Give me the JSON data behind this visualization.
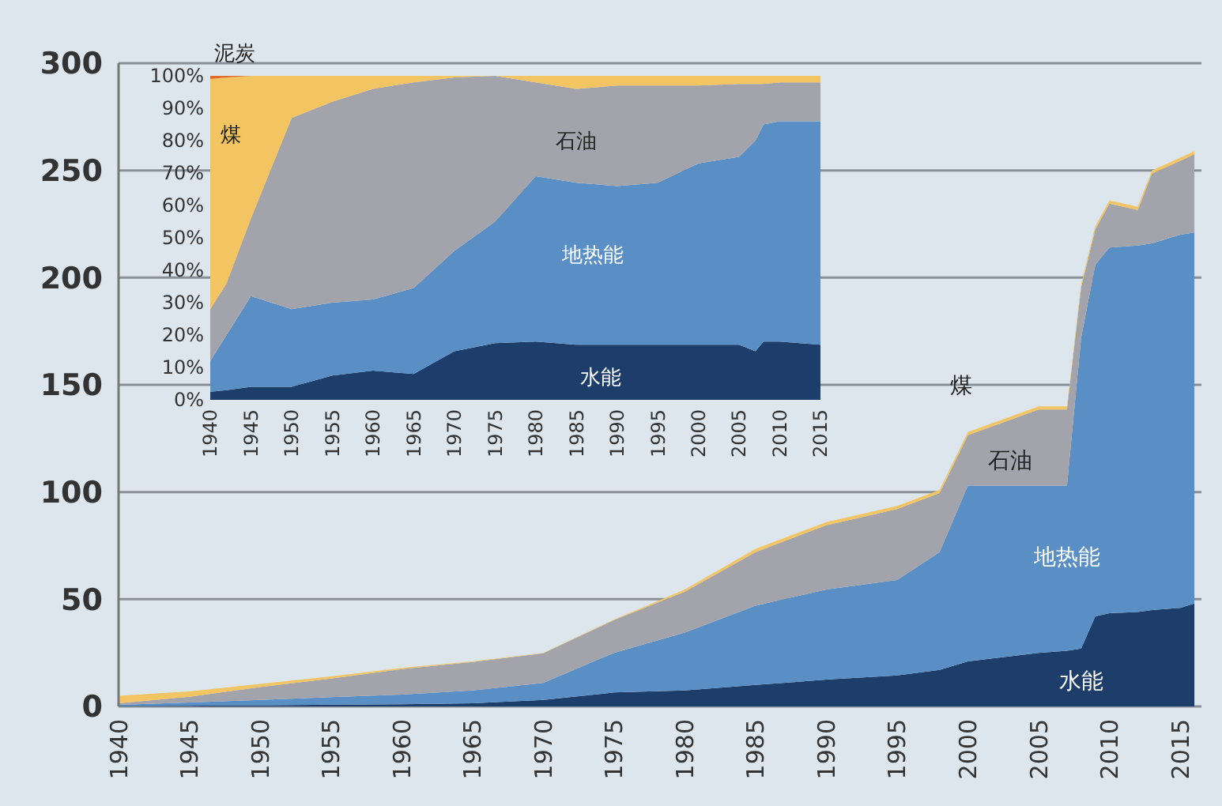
{
  "chart_data": [
    {
      "type": "area",
      "stacked": true,
      "grid": "y",
      "x": [
        1940,
        1945,
        1950,
        1955,
        1960,
        1965,
        1970,
        1975,
        1980,
        1985,
        1990,
        1995,
        1998,
        2000,
        2005,
        2007,
        2008,
        2009,
        2010,
        2012,
        2013,
        2015,
        2016
      ],
      "series": [
        {
          "name": "水能",
          "color": "#1d3d6b",
          "values": [
            0.2,
            0.3,
            0.5,
            0.8,
            1,
            1.5,
            3,
            6.5,
            7.5,
            10,
            12.5,
            14.5,
            17,
            21,
            25,
            26,
            27,
            42,
            43.5,
            44,
            45,
            46,
            48
          ]
        },
        {
          "name": "地热能",
          "color": "#5a8fc6",
          "values": [
            0.5,
            1.5,
            2.5,
            3.5,
            4.5,
            6,
            8,
            18.5,
            27,
            37,
            42,
            44.5,
            55,
            82,
            78,
            77,
            145,
            164,
            170.5,
            171,
            171,
            174,
            173
          ]
        },
        {
          "name": "石油",
          "color": "#a3a3ab",
          "values": [
            0.8,
            2.7,
            6,
            8.7,
            11.9,
            13.2,
            13.8,
            15.3,
            19,
            25,
            30,
            33,
            27.5,
            23.5,
            35.5,
            35.5,
            23.5,
            16.5,
            20.5,
            16.5,
            32.5,
            34.5,
            36.5
          ]
        },
        {
          "name": "煤",
          "color": "#f2c462",
          "values": [
            3.5,
            2.5,
            1.5,
            1,
            0.6,
            0.3,
            0.2,
            0.2,
            1,
            1.5,
            1.5,
            1.5,
            1.5,
            1.5,
            1.5,
            1.5,
            1.5,
            1.5,
            1.5,
            1.5,
            1.5,
            1.5,
            1.5
          ]
        }
      ],
      "xlim": [
        1940,
        2016.5
      ],
      "xticks": [
        1940,
        1945,
        1950,
        1955,
        1960,
        1965,
        1970,
        1975,
        1980,
        1985,
        1990,
        1995,
        2000,
        2005,
        2010,
        2015
      ],
      "ylim": [
        0,
        300
      ],
      "yticks": [
        0,
        50,
        100,
        150,
        200,
        250,
        300
      ]
    },
    {
      "type": "area",
      "stacked": true,
      "x": [
        1940,
        1942,
        1945,
        1950,
        1955,
        1960,
        1965,
        1970,
        1975,
        1980,
        1985,
        1990,
        1995,
        2000,
        2005,
        2007,
        2008,
        2010,
        2015
      ],
      "series": [
        {
          "name": "水能",
          "color": "#1d3d6b",
          "values": [
            2.5,
            3,
            4,
            4,
            7.5,
            9,
            8,
            15,
            17.5,
            18,
            17,
            17,
            17,
            17,
            17,
            15,
            18,
            18,
            17
          ]
        },
        {
          "name": "地热能",
          "color": "#5a8fc6",
          "values": [
            9.5,
            17,
            28,
            24,
            22.5,
            22,
            26.5,
            31,
            37.5,
            51,
            50,
            49,
            50,
            56,
            58,
            65,
            67,
            68,
            69
          ]
        },
        {
          "name": "石油",
          "color": "#a3a3ab",
          "values": [
            16,
            16,
            24,
            59,
            62,
            65,
            63.5,
            53.5,
            45,
            29,
            29,
            31,
            30,
            24,
            22.5,
            17.5,
            12.5,
            12,
            12
          ]
        },
        {
          "name": "煤",
          "color": "#f2c462",
          "values": [
            71,
            63.5,
            44,
            13,
            8,
            4,
            2,
            0.5,
            0,
            2,
            4,
            3,
            3,
            3,
            2.5,
            2.5,
            2.5,
            2,
            2
          ]
        },
        {
          "name": "泥炭",
          "color": "#e06a2a",
          "values": [
            1,
            0.5,
            0,
            0,
            0,
            0,
            0,
            0,
            0,
            0,
            0,
            0,
            0,
            0,
            0,
            0,
            0,
            0,
            0
          ]
        }
      ],
      "xlim": [
        1940,
        2015
      ],
      "xticks": [
        1940,
        1945,
        1950,
        1955,
        1960,
        1965,
        1970,
        1975,
        1980,
        1985,
        1990,
        1995,
        2000,
        2005,
        2010,
        2015
      ],
      "ylim": [
        0,
        100
      ],
      "yticks": [
        {
          "value": 0,
          "label": "0%"
        },
        {
          "value": 10,
          "label": "10%"
        },
        {
          "value": 20,
          "label": "20%"
        },
        {
          "value": 30,
          "label": "30%"
        },
        {
          "value": 40,
          "label": "40%"
        },
        {
          "value": 50,
          "label": "50%"
        },
        {
          "value": 60,
          "label": "60%"
        },
        {
          "value": 70,
          "label": "70%"
        },
        {
          "value": 80,
          "label": "80%"
        },
        {
          "value": 90,
          "label": "90%"
        },
        {
          "value": 100,
          "label": "100%"
        }
      ]
    }
  ]
}
